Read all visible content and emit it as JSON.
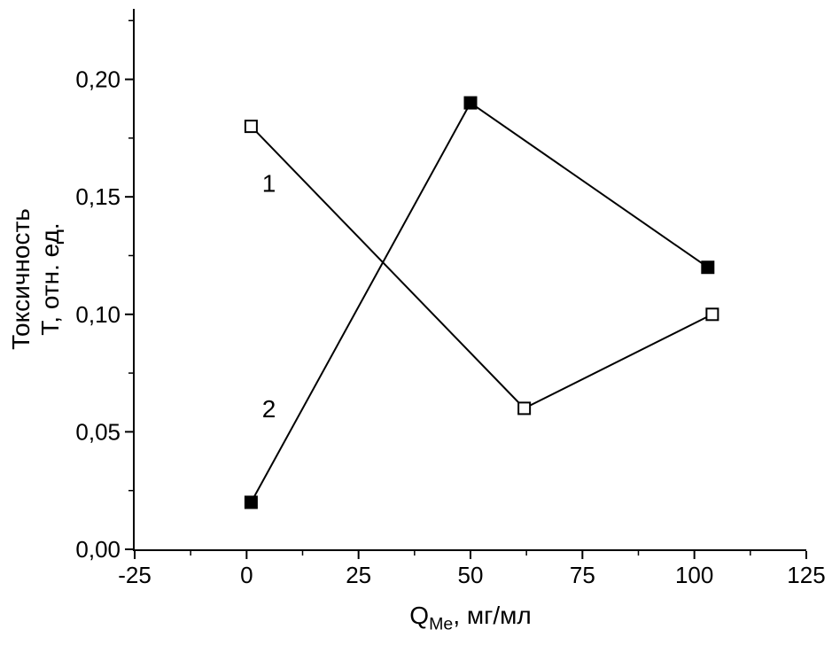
{
  "figure": {
    "background": "#ffffff"
  },
  "chart_data": {
    "type": "line",
    "title": "",
    "xlabel_main": "Q",
    "xlabel_sub": "Me",
    "xlabel_units": ", мг/мл",
    "ylabel_line1": "Токсичность",
    "ylabel_line2": "Т, отн. ед.",
    "xlim": [
      -25,
      125
    ],
    "ylim": [
      0,
      0.23
    ],
    "xticks": [
      -25,
      0,
      25,
      50,
      75,
      100,
      125
    ],
    "xtick_labels": [
      "-25",
      "0",
      "25",
      "50",
      "75",
      "100",
      "125"
    ],
    "xticks_minor": [
      -12.5,
      12.5,
      37.5,
      62.5,
      87.5,
      112.5
    ],
    "yticks": [
      0.0,
      0.05,
      0.1,
      0.15,
      0.2
    ],
    "ytick_labels": [
      "0,00",
      "0,05",
      "0,10",
      "0,15",
      "0,20"
    ],
    "yticks_minor": [
      0.025,
      0.075,
      0.125,
      0.175,
      0.225
    ],
    "grid": false,
    "legend": "none",
    "series": [
      {
        "name": "1",
        "marker": "open-square",
        "x": [
          1,
          62,
          104
        ],
        "y": [
          0.18,
          0.06,
          0.1
        ]
      },
      {
        "name": "2",
        "marker": "filled-square",
        "x": [
          1,
          50,
          103
        ],
        "y": [
          0.02,
          0.19,
          0.12
        ]
      }
    ],
    "annotations": [
      {
        "text": "1",
        "x": 5,
        "y": 0.156
      },
      {
        "text": "2",
        "x": 5,
        "y": 0.06
      }
    ],
    "colors": {
      "line": "#000000",
      "axis": "#000000",
      "text": "#000000",
      "marker_open_fill": "#ffffff",
      "background": "#ffffff"
    }
  }
}
